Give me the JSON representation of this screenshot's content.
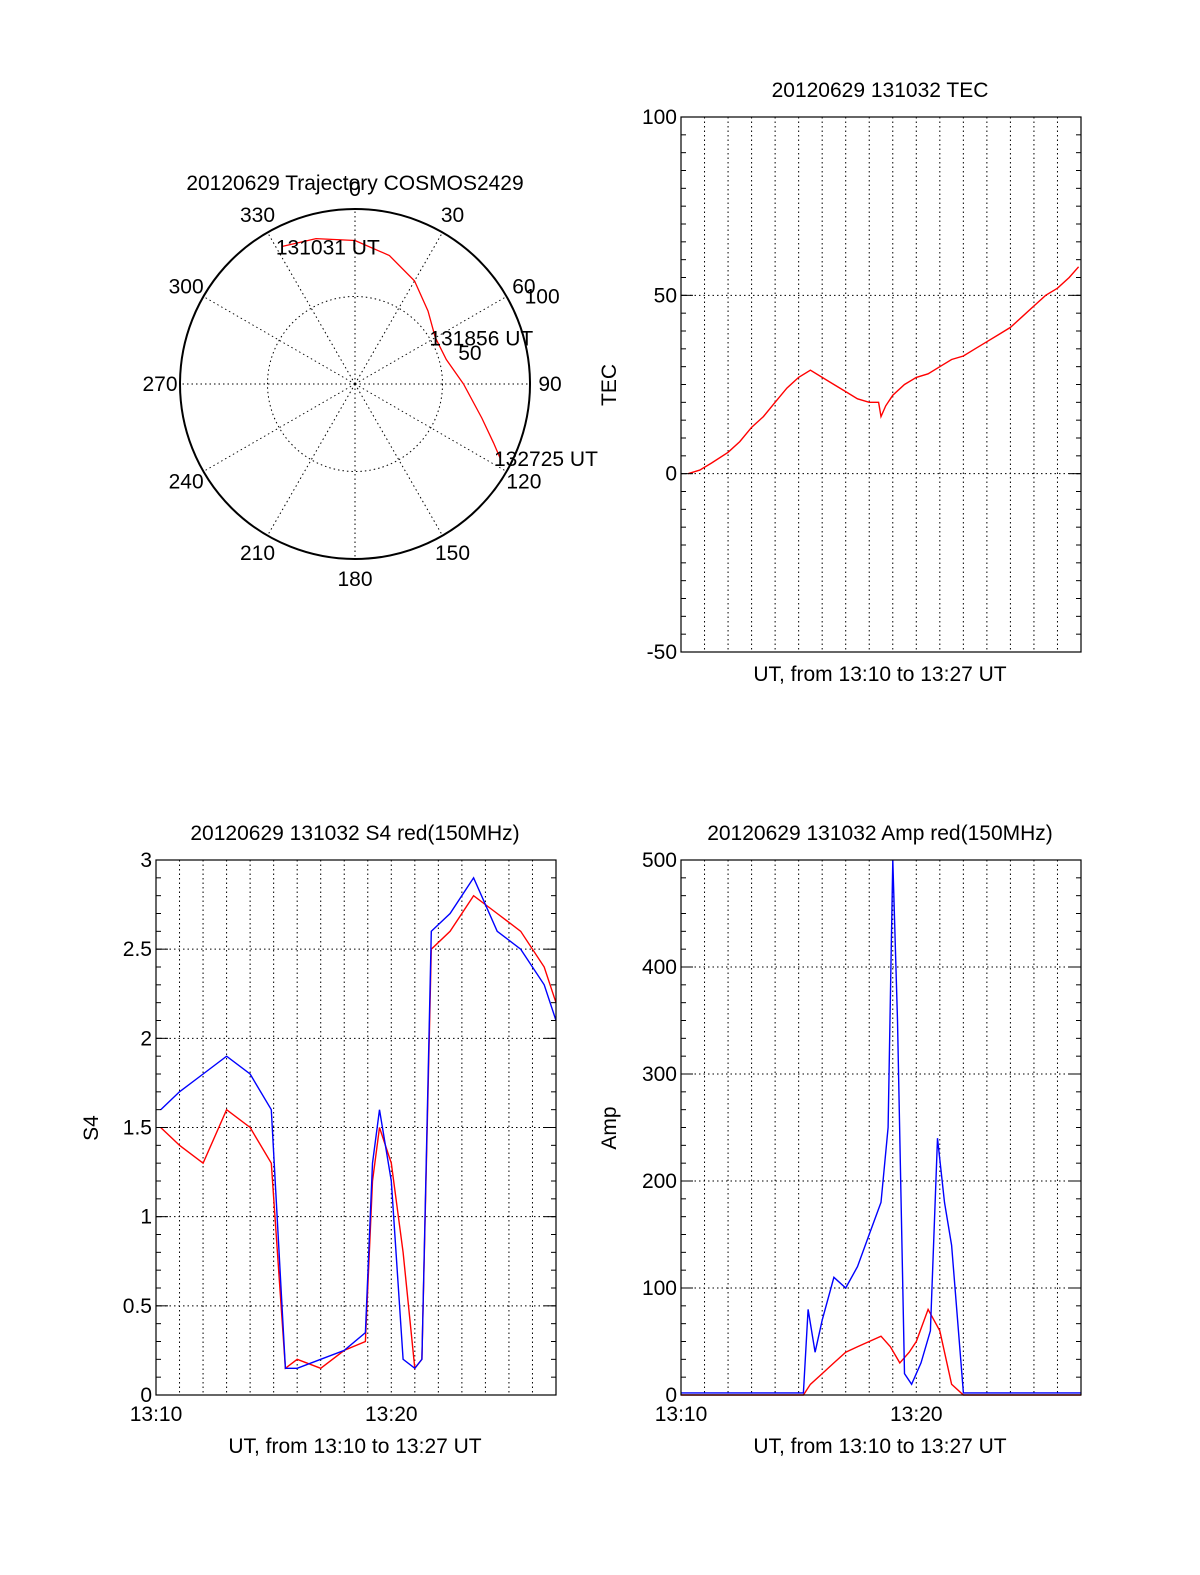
{
  "chart_data": [
    {
      "type": "polar-trajectory",
      "title": "20120629 Trajectory COSMOS2429",
      "azimuth_labels": [
        "0",
        "30",
        "60",
        "90",
        "120",
        "150",
        "180",
        "210",
        "240",
        "270",
        "300",
        "330"
      ],
      "radial_labels": [
        "50",
        "100"
      ],
      "track_color": "#ff0000",
      "track": [
        {
          "az": 332,
          "r": 89
        },
        {
          "az": 345,
          "r": 86
        },
        {
          "az": 0,
          "r": 82
        },
        {
          "az": 15,
          "r": 76
        },
        {
          "az": 30,
          "r": 68
        },
        {
          "az": 45,
          "r": 59
        },
        {
          "az": 60,
          "r": 53
        },
        {
          "az": 75,
          "r": 54
        },
        {
          "az": 90,
          "r": 62
        },
        {
          "az": 105,
          "r": 75
        },
        {
          "az": 113,
          "r": 86
        },
        {
          "az": 117,
          "r": 93
        }
      ],
      "annotations": [
        {
          "text": "131031 UT",
          "az": 332,
          "r": 89
        },
        {
          "text": "131856 UT",
          "az": 60,
          "r": 53
        },
        {
          "text": "132725 UT",
          "az": 117,
          "r": 93
        }
      ]
    },
    {
      "type": "line",
      "title": "20120629 131032 TEC",
      "xlabel": "UT, from 13:10 to 13:27 UT",
      "ylabel": "TEC",
      "xlim": [
        0,
        17
      ],
      "ylim": [
        -50,
        100
      ],
      "yticks": [
        "100",
        "50",
        "0",
        "-50"
      ],
      "ytick_values": [
        100,
        50,
        0,
        -50
      ],
      "series": [
        {
          "color": "#ff0000",
          "x": [
            0.3,
            0.8,
            1.3,
            2.0,
            2.5,
            3.0,
            3.5,
            4.0,
            4.5,
            5.0,
            5.5,
            6.0,
            6.5,
            7.0,
            7.5,
            8.0,
            8.4,
            8.5,
            8.7,
            9.0,
            9.5,
            10.0,
            10.5,
            11.0,
            11.5,
            12.0,
            12.5,
            13.0,
            13.5,
            14.0,
            14.5,
            15.0,
            15.5,
            16.0,
            16.5,
            16.9
          ],
          "y": [
            0,
            1,
            3,
            6,
            9,
            13,
            16,
            20,
            24,
            27,
            29,
            27,
            25,
            23,
            21,
            20,
            20,
            16,
            19,
            22,
            25,
            27,
            28,
            30,
            32,
            33,
            35,
            37,
            39,
            41,
            44,
            47,
            50,
            52,
            55,
            58
          ]
        }
      ]
    },
    {
      "type": "line",
      "title": "20120629 131032 S4 red(150MHz)",
      "xlabel": "UT, from 13:10 to 13:27 UT",
      "ylabel": "S4",
      "xlim": [
        0,
        17
      ],
      "ylim": [
        0,
        3
      ],
      "xticks": [
        "13:10",
        "13:20"
      ],
      "xtick_values": [
        0,
        10
      ],
      "yticks": [
        "3",
        "2.5",
        "2",
        "1.5",
        "1",
        "0.5",
        "0"
      ],
      "ytick_values": [
        3,
        2.5,
        2,
        1.5,
        1,
        0.5,
        0
      ],
      "series": [
        {
          "color": "#ff0000",
          "x": [
            0.2,
            1.0,
            2.0,
            3.0,
            4.0,
            4.9,
            5.5,
            6.0,
            7.0,
            8.0,
            8.9,
            9.2,
            9.5,
            10.0,
            10.5,
            11.0,
            11.3,
            11.7,
            12.5,
            13.5,
            14.5,
            15.5,
            16.5,
            17.0
          ],
          "y": [
            1.5,
            1.4,
            1.3,
            1.6,
            1.5,
            1.3,
            0.15,
            0.2,
            0.15,
            0.25,
            0.3,
            1.2,
            1.5,
            1.3,
            0.8,
            0.15,
            0.2,
            2.5,
            2.6,
            2.8,
            2.7,
            2.6,
            2.4,
            2.2
          ]
        },
        {
          "color": "#0000ff",
          "x": [
            0.2,
            1.0,
            2.0,
            3.0,
            4.0,
            4.9,
            5.5,
            6.0,
            7.0,
            8.0,
            8.9,
            9.2,
            9.5,
            10.0,
            10.5,
            11.0,
            11.3,
            11.7,
            12.5,
            13.5,
            14.5,
            15.5,
            16.5,
            17.0
          ],
          "y": [
            1.6,
            1.7,
            1.8,
            1.9,
            1.8,
            1.6,
            0.15,
            0.15,
            0.2,
            0.25,
            0.35,
            1.3,
            1.6,
            1.2,
            0.2,
            0.15,
            0.2,
            2.6,
            2.7,
            2.9,
            2.6,
            2.5,
            2.3,
            2.1
          ]
        }
      ]
    },
    {
      "type": "line",
      "title": "20120629 131032 Amp red(150MHz)",
      "xlabel": "UT, from 13:10 to 13:27 UT",
      "ylabel": "Amp",
      "xlim": [
        0,
        17
      ],
      "ylim": [
        0,
        500
      ],
      "xticks": [
        "13:10",
        "13:20"
      ],
      "xtick_values": [
        0,
        10
      ],
      "yticks": [
        "500",
        "400",
        "300",
        "200",
        "100",
        "0"
      ],
      "ytick_values": [
        500,
        400,
        300,
        200,
        100,
        0
      ],
      "series": [
        {
          "color": "#ff0000",
          "x": [
            0,
            5.2,
            5.5,
            6.0,
            6.5,
            7.0,
            7.5,
            8.0,
            8.5,
            8.9,
            9.3,
            9.7,
            10.0,
            10.5,
            11.0,
            11.5,
            12.0,
            17.0
          ],
          "y": [
            0,
            0,
            10,
            20,
            30,
            40,
            45,
            50,
            55,
            45,
            30,
            40,
            50,
            80,
            60,
            10,
            0,
            0
          ]
        },
        {
          "color": "#0000ff",
          "x": [
            0,
            5.2,
            5.4,
            5.7,
            6.0,
            6.5,
            7.0,
            7.5,
            8.0,
            8.5,
            8.8,
            9.0,
            9.2,
            9.5,
            9.8,
            10.2,
            10.6,
            10.9,
            11.2,
            11.5,
            12.0,
            17.0
          ],
          "y": [
            2,
            2,
            80,
            40,
            70,
            110,
            100,
            120,
            150,
            180,
            250,
            500,
            350,
            20,
            10,
            30,
            60,
            240,
            180,
            140,
            2,
            2
          ]
        }
      ]
    }
  ]
}
